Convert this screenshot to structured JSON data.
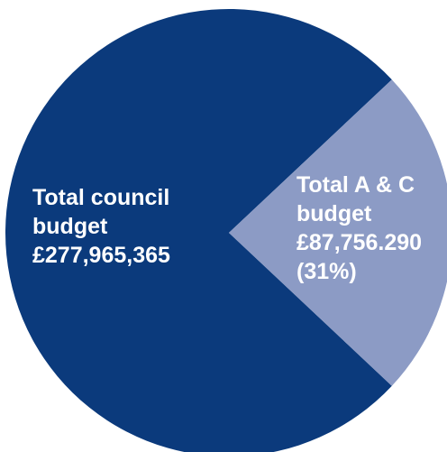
{
  "chart_data": {
    "type": "pie",
    "title": "",
    "slices": [
      {
        "name": "Total council budget",
        "lines": [
          "Total council",
          "budget",
          "£277,965,365"
        ],
        "value": 277965365,
        "percent": 69,
        "color": "#0b3a7c"
      },
      {
        "name": "Total A & C budget",
        "lines": [
          "Total A & C",
          "budget",
          "£87,756.290",
          "(31%)"
        ],
        "value": 87756290,
        "percent": 31,
        "color": "#8c9bc5"
      }
    ]
  }
}
